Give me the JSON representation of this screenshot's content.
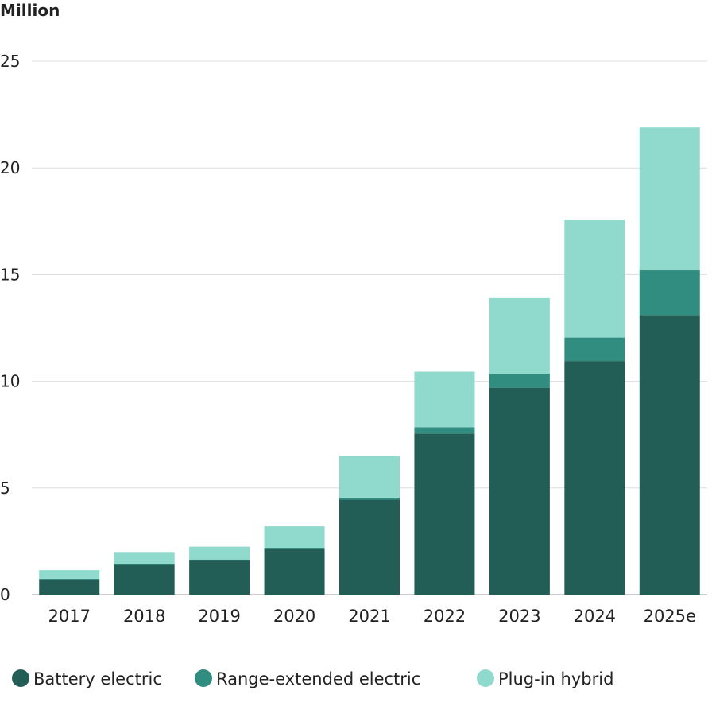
{
  "chart_data": {
    "type": "bar",
    "stacked": true,
    "ylabel": "Million",
    "ylim": [
      0,
      25
    ],
    "yticks": [
      "0",
      "5",
      "10",
      "15",
      "20",
      "25"
    ],
    "grid": true,
    "legend_position": "bottom",
    "categories": [
      "2017",
      "2018",
      "2019",
      "2020",
      "2021",
      "2022",
      "2023",
      "2024",
      "2025e"
    ],
    "series": [
      {
        "name": "Battery electric",
        "color": "#225e56",
        "values": [
          0.7,
          1.4,
          1.6,
          2.15,
          4.45,
          7.55,
          9.7,
          10.95,
          13.1
        ]
      },
      {
        "name": "Range-extended electric",
        "color": "#318d80",
        "values": [
          0.05,
          0.05,
          0.05,
          0.05,
          0.1,
          0.3,
          0.65,
          1.1,
          2.1
        ]
      },
      {
        "name": "Plug-in hybrid",
        "color": "#8fdacd",
        "values": [
          0.4,
          0.55,
          0.6,
          1.0,
          1.95,
          2.6,
          3.55,
          5.5,
          6.7
        ]
      }
    ]
  }
}
